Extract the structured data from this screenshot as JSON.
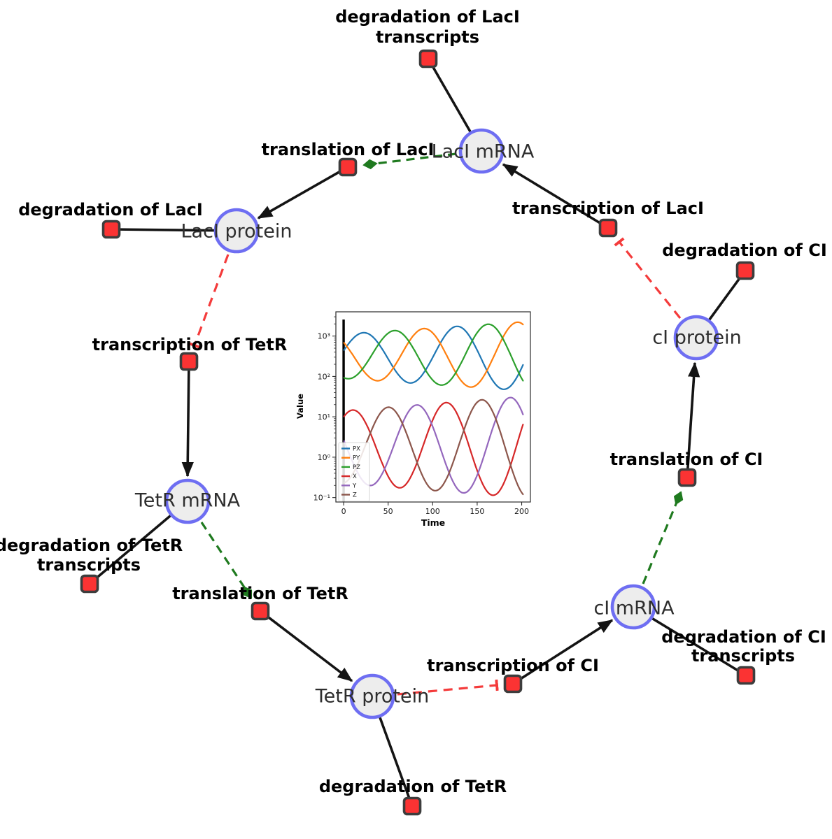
{
  "colors": {
    "species_fill": "#ededed",
    "species_border": "#6e6ef2",
    "reaction_fill": "#fb3333",
    "reaction_border": "#3d3d3d",
    "edge_black": "#141414",
    "modifier_green": "#1f7a1f",
    "inhibition_red": "#f43b3b",
    "species_label": "#2e2e2e",
    "reaction_label": "#000000"
  },
  "diagram": {
    "species": [
      {
        "label": "LacI mRNA"
      },
      {
        "label": "LacI protein"
      },
      {
        "label": "cI protein"
      },
      {
        "label": "TetR mRNA"
      },
      {
        "label": "TetR protein"
      },
      {
        "label": "cI mRNA"
      }
    ],
    "reactions": [
      {
        "label_line1": "degradation of LacI",
        "label_line2": "transcripts"
      },
      {
        "label_line1": "translation of LacI"
      },
      {
        "label_line1": "degradation of LacI"
      },
      {
        "label_line1": "transcription of LacI"
      },
      {
        "label_line1": "degradation of CI"
      },
      {
        "label_line1": "transcription of TetR"
      },
      {
        "label_line1": "translation of CI"
      },
      {
        "label_line1": "degradation of TetR",
        "label_line2": "transcripts"
      },
      {
        "label_line1": "translation of TetR"
      },
      {
        "label_line1": "transcription of CI"
      },
      {
        "label_line1": "degradation of CI",
        "label_line2": "transcripts"
      },
      {
        "label_line1": "degradation of TetR"
      }
    ],
    "edges": [
      {
        "from": "LacI mRNA",
        "to": "degradation of LacI transcripts",
        "type": "reactant"
      },
      {
        "from": "LacI protein",
        "to": "degradation of LacI",
        "type": "reactant"
      },
      {
        "from": "cI protein",
        "to": "degradation of CI",
        "type": "reactant"
      },
      {
        "from": "TetR mRNA",
        "to": "degradation of TetR transcripts",
        "type": "reactant"
      },
      {
        "from": "TetR protein",
        "to": "degradation of TetR",
        "type": "reactant"
      },
      {
        "from": "cI mRNA",
        "to": "degradation of CI transcripts",
        "type": "reactant"
      },
      {
        "from": "translation of LacI",
        "to": "LacI protein",
        "type": "product"
      },
      {
        "from": "transcription of LacI",
        "to": "LacI mRNA",
        "type": "product"
      },
      {
        "from": "transcription of TetR",
        "to": "TetR mRNA",
        "type": "product"
      },
      {
        "from": "translation of TetR",
        "to": "TetR protein",
        "type": "product"
      },
      {
        "from": "transcription of CI",
        "to": "cI mRNA",
        "type": "product"
      },
      {
        "from": "translation of CI",
        "to": "cI protein",
        "type": "product"
      },
      {
        "from": "LacI mRNA",
        "to": "translation of LacI",
        "type": "modifier"
      },
      {
        "from": "TetR mRNA",
        "to": "translation of TetR",
        "type": "modifier"
      },
      {
        "from": "cI mRNA",
        "to": "translation of CI",
        "type": "modifier"
      },
      {
        "from": "LacI protein",
        "to": "transcription of TetR",
        "type": "inhibition"
      },
      {
        "from": "cI protein",
        "to": "transcription of LacI",
        "type": "inhibition"
      },
      {
        "from": "TetR protein",
        "to": "transcription of CI",
        "type": "inhibition"
      }
    ]
  },
  "chart_data": {
    "type": "line",
    "title": "",
    "xlabel": "Time",
    "ylabel": "Value",
    "yscale": "log",
    "grid": false,
    "legend_position": "lower left",
    "x_ticks": [
      0,
      50,
      100,
      150,
      200
    ],
    "y_ticks": [
      {
        "label": "10³",
        "log10": 3
      },
      {
        "label": "10²",
        "log10": 2
      },
      {
        "label": "10¹",
        "log10": 1
      },
      {
        "label": "10⁰",
        "log10": 0
      },
      {
        "label": "10⁻¹",
        "log10": -1
      }
    ],
    "xlim": [
      -8.7,
      209.8
    ],
    "ylim_log10": [
      -1.11,
      3.6
    ],
    "t0_marker": true,
    "t_range": [
      0.5,
      201.5,
      1.5
    ],
    "series": [
      {
        "name": "PX",
        "color": "#1f77b4",
        "log10_center": 2.5,
        "log10_amp_start": 0.55,
        "log10_amp_end": 0.85,
        "period": 105,
        "peak_time": 127
      },
      {
        "name": "PY",
        "color": "#ff7f0e",
        "log10_center": 2.5,
        "log10_amp_start": 0.55,
        "log10_amp_end": 0.85,
        "period": 105,
        "peak_time": 90
      },
      {
        "name": "PZ",
        "color": "#2ca02c",
        "log10_center": 2.5,
        "log10_amp_start": 0.55,
        "log10_amp_end": 0.85,
        "period": 105,
        "peak_time": 57
      },
      {
        "name": "X",
        "color": "#d62728",
        "log10_center": 0.25,
        "log10_amp_start": 0.9,
        "log10_amp_end": 1.25,
        "period": 105,
        "peak_time": 115
      },
      {
        "name": "Y",
        "color": "#9467bd",
        "log10_center": 0.25,
        "log10_amp_start": 0.9,
        "log10_amp_end": 1.25,
        "period": 105,
        "peak_time": 82
      },
      {
        "name": "Z",
        "color": "#8c564b",
        "log10_center": 0.25,
        "log10_amp_start": 0.9,
        "log10_amp_end": 1.25,
        "period": 105,
        "peak_time": 50
      }
    ]
  }
}
